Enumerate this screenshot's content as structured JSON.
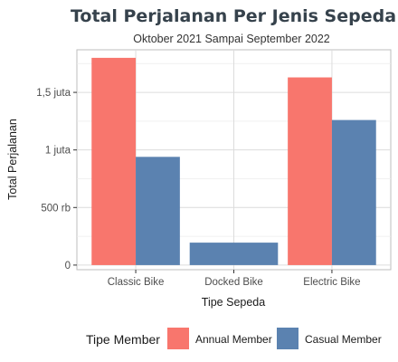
{
  "chart_data": {
    "type": "bar",
    "title": "Total Perjalanan Per Jenis Sepeda",
    "subtitle": "Oktober 2021 Sampai September 2022",
    "xlabel": "Tipe Sepeda",
    "ylabel": "Total Perjalanan",
    "categories": [
      "Classic Bike",
      "Docked Bike",
      "Electric Bike"
    ],
    "series": [
      {
        "name": "Annual Member",
        "color": "#f8766d",
        "values": [
          1800000,
          null,
          1630000
        ]
      },
      {
        "name": "Casual Member",
        "color": "#5b82b0",
        "values": [
          940000,
          195000,
          1260000
        ]
      }
    ],
    "ylim": [
      -40000,
      1870000
    ],
    "yticks": [
      {
        "value": 0,
        "label": "0"
      },
      {
        "value": 500000,
        "label": "500 rb"
      },
      {
        "value": 1000000,
        "label": "1 juta"
      },
      {
        "value": 1500000,
        "label": "1,5 juta"
      }
    ],
    "grid": true,
    "legend": {
      "title": "Tipe Member",
      "position": "bottom"
    }
  }
}
